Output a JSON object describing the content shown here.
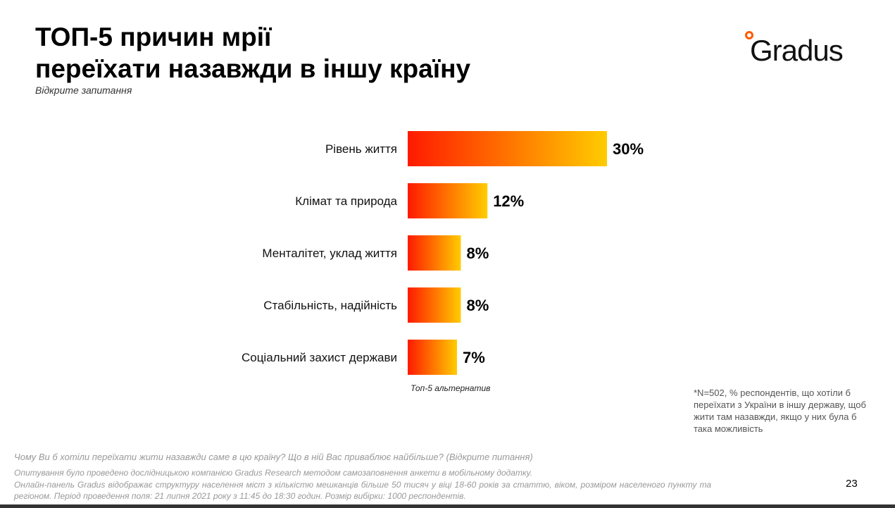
{
  "header": {
    "title_line1": "ТОП-5 причин мрії",
    "title_line2": "переїхати назавжди в іншу країну",
    "subtitle": "Відкрите запитання"
  },
  "logo": {
    "text": "Gradus"
  },
  "chart_data": {
    "type": "bar",
    "orientation": "horizontal",
    "categories": [
      "Рівень життя",
      "Клімат та природа",
      "Менталітет, уклад життя",
      "Стабільність, надійність",
      "Соціальний захист держави"
    ],
    "values": [
      30,
      12,
      8,
      8,
      7
    ],
    "labels": [
      "30%",
      "12%",
      "8%",
      "8%",
      "7%"
    ],
    "gradient": [
      "#ff1a00",
      "#ffcc00"
    ],
    "xlim": [
      0,
      30
    ],
    "note": "Топ-5 альтернатив"
  },
  "footnote": "*N=502, % респондентів, що хотіли б переїхати з України в іншу державу, щоб жити там назавжди, якщо у них була б така можливість",
  "question": "Чому Ви б хотіли переїхати жити назавжди саме в цю країну? Що в ній Вас приваблює найбільше? (Відкрите питання)",
  "methodology": [
    "Опитування було проведено дослідницькою компанією Gradus Research методом самозаповнення анкети в мобільному додатку.",
    "Онлайн-панель Gradus відображає структуру населення міст з кількістю мешканців більше 50 тисяч у віці 18-60 років за статтю, віком, розміром населеного пункту та регіоном. Період проведення поля: 21 липня 2021 року з 11:45 до 18:30 годин. Розмір вибірки: 1000 респондентів."
  ],
  "page_number": "23"
}
